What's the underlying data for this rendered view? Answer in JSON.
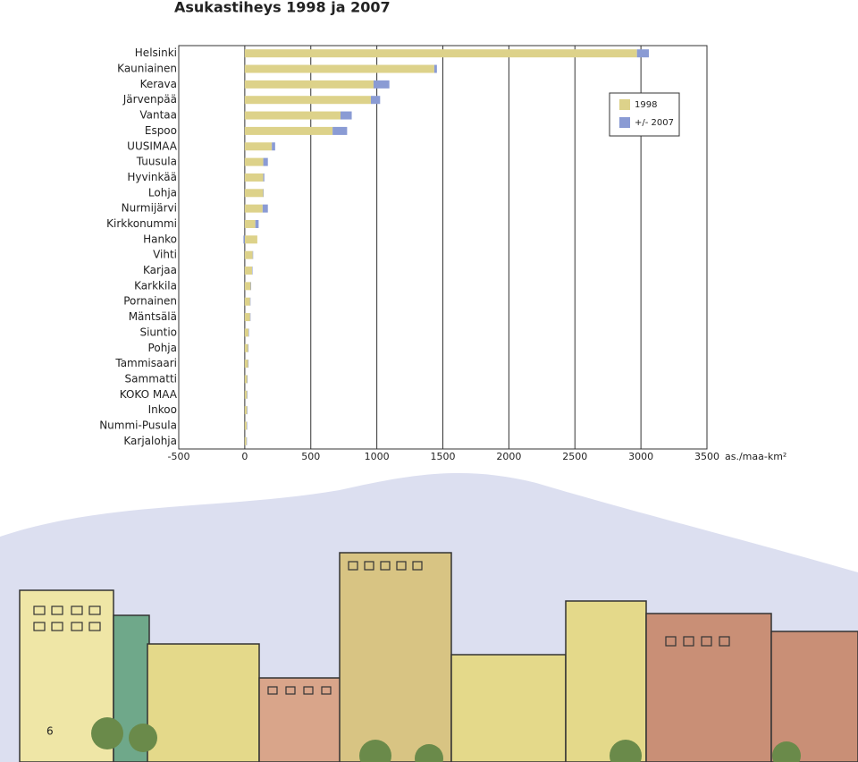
{
  "chart_data": {
    "type": "hbar-stacked",
    "title": "Asukastiheys 1998 ja 2007",
    "categories": [
      "Helsinki",
      "Kauniainen",
      "Kerava",
      "Järvenpää",
      "Vantaa",
      "Espoo",
      "UUSIMAA",
      "Tuusula",
      "Hyvinkää",
      "Lohja",
      "Nurmijärvi",
      "Kirkkonummi",
      "Hanko",
      "Vihti",
      "Karjaa",
      "Karkkila",
      "Pornainen",
      "Mäntsälä",
      "Siuntio",
      "Pohja",
      "Tammisaari",
      "Sammatti",
      "KOKO MAA",
      "Inkoo",
      "Nummi-Pusula",
      "Karjalohja"
    ],
    "series": [
      {
        "name": "1998",
        "color": "#ddd28a",
        "values": [
          2970,
          1435,
          975,
          955,
          725,
          665,
          205,
          140,
          140,
          140,
          135,
          80,
          95,
          60,
          55,
          45,
          40,
          40,
          28,
          25,
          25,
          18,
          17,
          17,
          15,
          13
        ]
      },
      {
        "name": "+/- 2007",
        "color": "#8a9bd4",
        "values": [
          90,
          20,
          120,
          70,
          85,
          110,
          25,
          35,
          8,
          2,
          40,
          25,
          -10,
          3,
          2,
          2,
          3,
          2,
          1,
          1,
          1,
          1,
          1,
          1,
          1,
          1
        ]
      }
    ],
    "xlim": [
      -500,
      3500
    ],
    "xticks": [
      -500,
      0,
      500,
      1000,
      1500,
      2000,
      2500,
      3000,
      3500
    ],
    "x_unit_label": "as./maa-km²",
    "grid": true,
    "legend": "top-right"
  },
  "page_number": "6"
}
